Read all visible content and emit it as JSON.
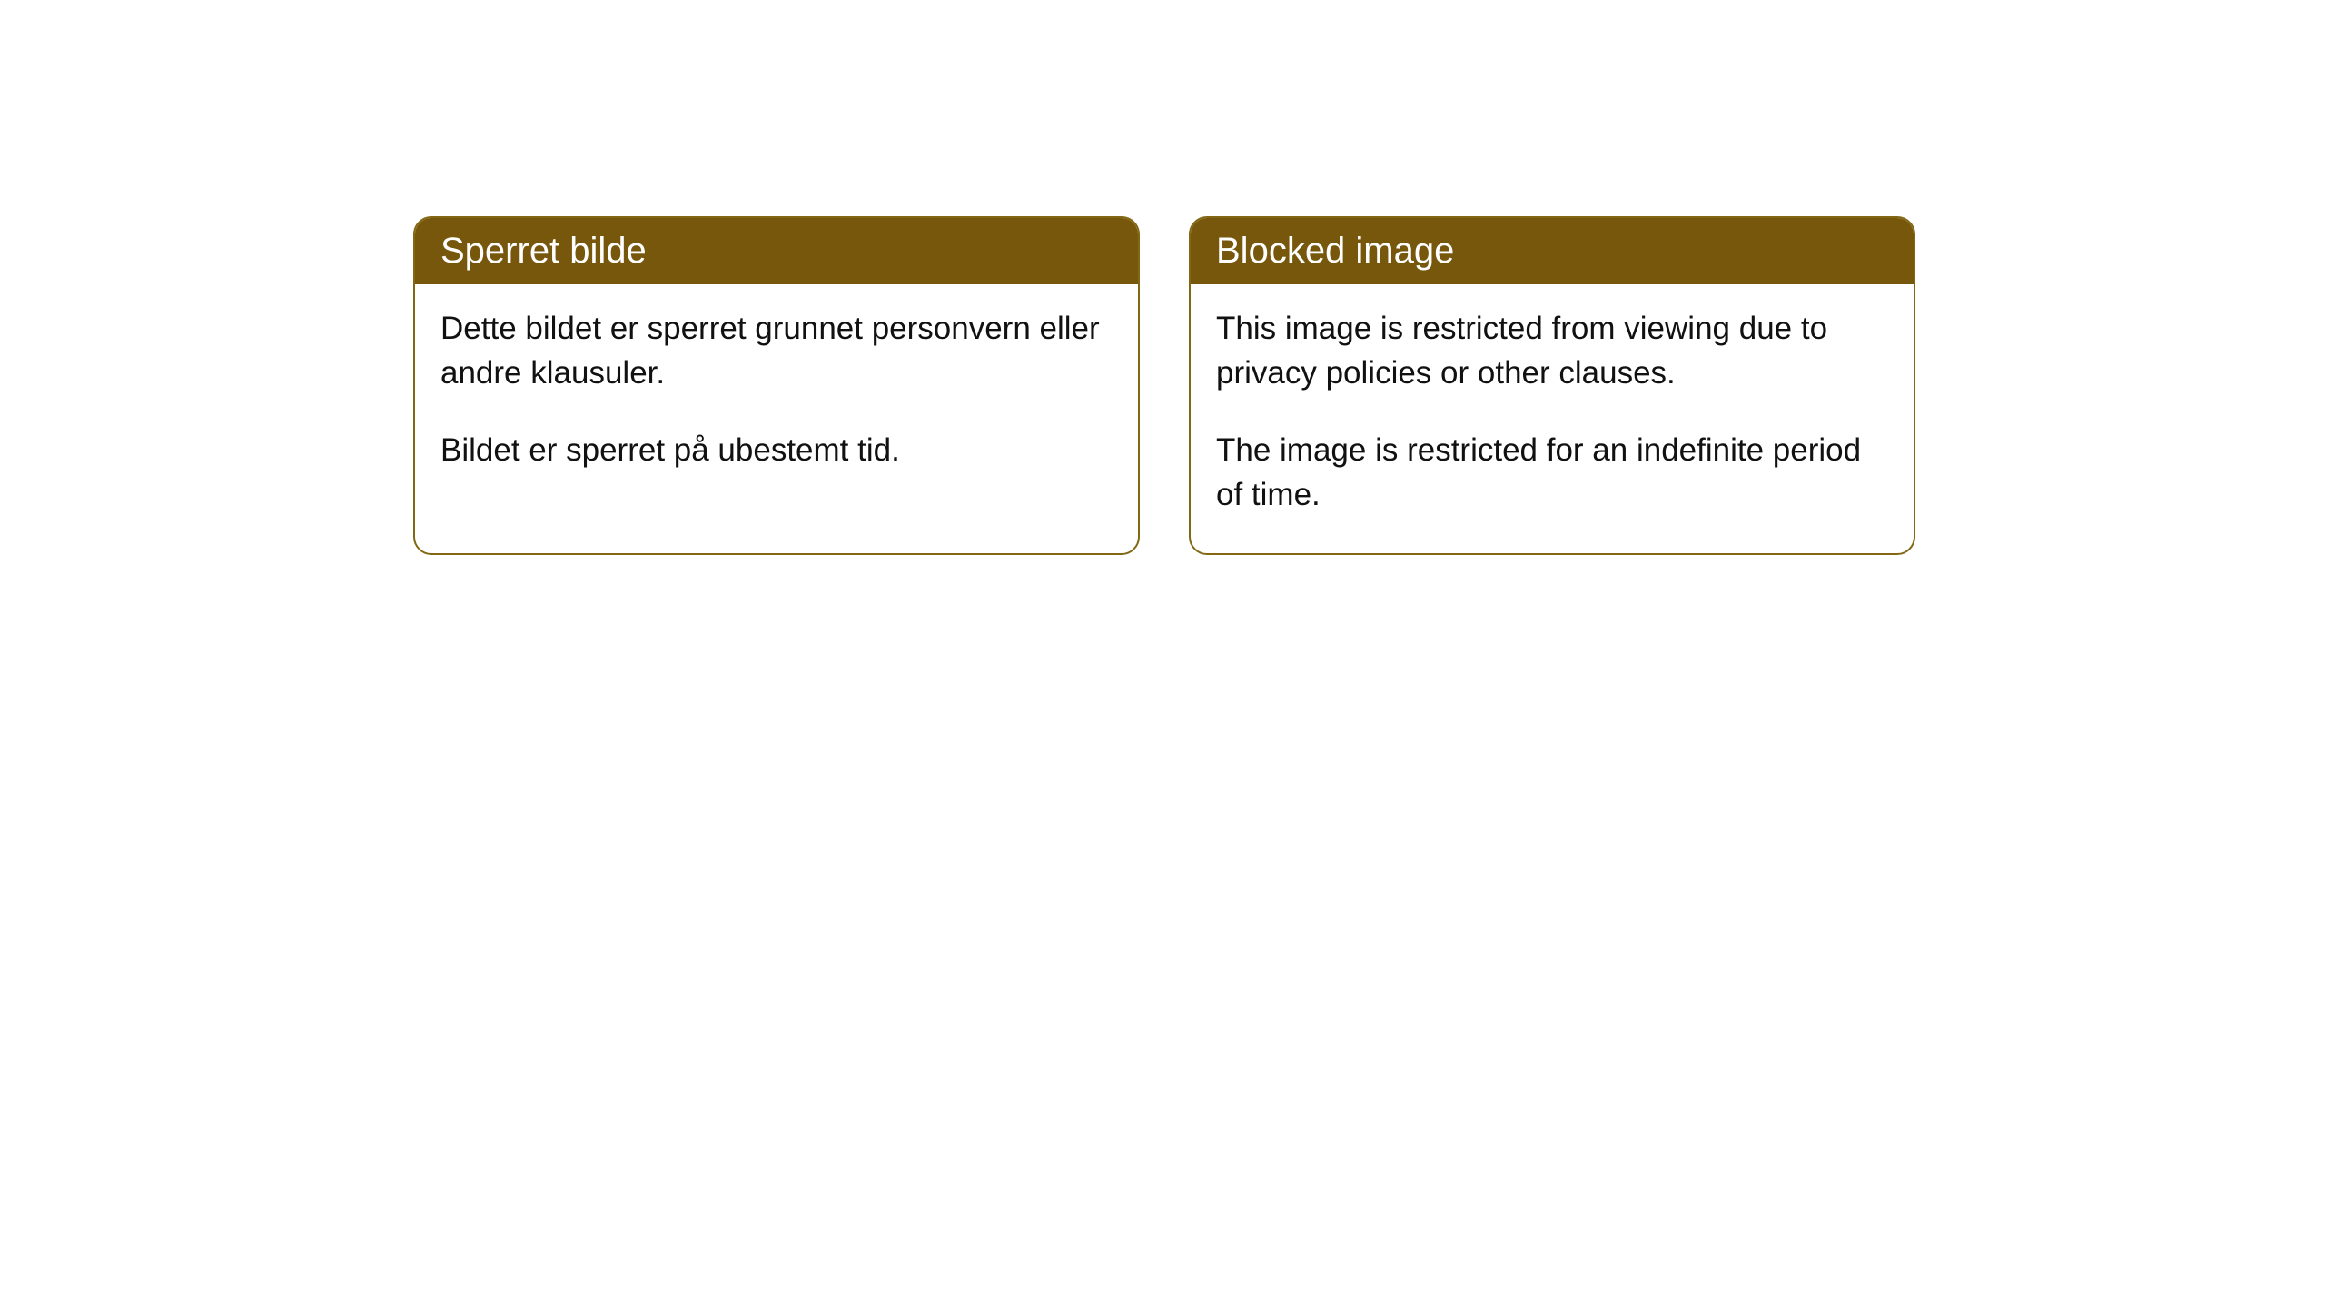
{
  "cards": [
    {
      "title": "Sperret bilde",
      "paragraph1": "Dette bildet er sperret grunnet personvern eller andre klausuler.",
      "paragraph2": "Bildet er sperret på ubestemt tid."
    },
    {
      "title": "Blocked image",
      "paragraph1": "This image is restricted from viewing due to privacy policies or other clauses.",
      "paragraph2": "The image is restricted for an indefinite period of time."
    }
  ],
  "style": {
    "header_bg_color": "#77570c",
    "header_text_color": "#ffffff",
    "border_color": "#826814",
    "body_bg_color": "#ffffff",
    "body_text_color": "#111111",
    "border_radius": 20,
    "header_fontsize": 40,
    "body_fontsize": 35
  }
}
